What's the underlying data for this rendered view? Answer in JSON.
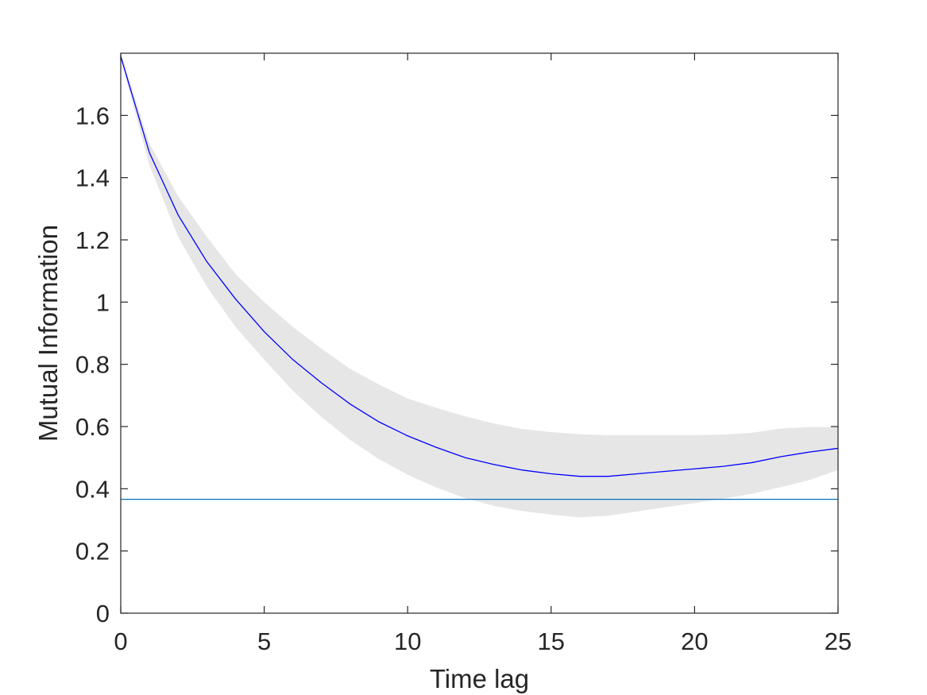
{
  "chart_data": {
    "type": "line",
    "title": "",
    "xlabel": "Time lag",
    "ylabel": "Mutual Information",
    "xlim": [
      0,
      25
    ],
    "ylim": [
      0,
      1.8
    ],
    "xticks": [
      0,
      5,
      10,
      15,
      20,
      25
    ],
    "xtick_labels": [
      "0",
      "5",
      "10",
      "15",
      "20",
      "25"
    ],
    "yticks": [
      0,
      0.2,
      0.4,
      0.6,
      0.8,
      1,
      1.2,
      1.4,
      1.6
    ],
    "ytick_labels": [
      "0",
      "0.2",
      "0.4",
      "0.6",
      "0.8",
      "1",
      "1.2",
      "1.4",
      "1.6"
    ],
    "grid": false,
    "box": true,
    "series": [
      {
        "kind": "line",
        "color": "#0000ff",
        "x": [
          0,
          1,
          2,
          3,
          4,
          5,
          6,
          7,
          8,
          9,
          10,
          11,
          12,
          13,
          14,
          15,
          16,
          17,
          18,
          19,
          20,
          21,
          22,
          23,
          24,
          25
        ],
        "y": [
          1.79,
          1.48,
          1.28,
          1.13,
          1.01,
          0.905,
          0.815,
          0.74,
          0.672,
          0.615,
          0.57,
          0.533,
          0.5,
          0.478,
          0.46,
          0.448,
          0.44,
          0.44,
          0.448,
          0.456,
          0.464,
          0.472,
          0.484,
          0.503,
          0.518,
          0.53
        ]
      },
      {
        "kind": "band",
        "color": "#e6e6e6",
        "x": [
          0,
          1,
          2,
          3,
          4,
          5,
          6,
          7,
          8,
          9,
          10,
          11,
          12,
          13,
          14,
          15,
          16,
          17,
          18,
          19,
          20,
          21,
          22,
          23,
          24,
          25
        ],
        "upper": [
          1.8,
          1.51,
          1.34,
          1.21,
          1.09,
          1.0,
          0.92,
          0.85,
          0.785,
          0.735,
          0.69,
          0.66,
          0.633,
          0.61,
          0.592,
          0.582,
          0.575,
          0.572,
          0.572,
          0.572,
          0.572,
          0.574,
          0.58,
          0.594,
          0.598,
          0.598
        ],
        "lower": [
          1.78,
          1.44,
          1.21,
          1.05,
          0.92,
          0.815,
          0.715,
          0.63,
          0.557,
          0.495,
          0.445,
          0.404,
          0.37,
          0.345,
          0.328,
          0.317,
          0.308,
          0.313,
          0.327,
          0.341,
          0.354,
          0.368,
          0.384,
          0.405,
          0.428,
          0.46
        ]
      },
      {
        "kind": "hline",
        "color": "#0072bd",
        "y": 0.366
      }
    ]
  }
}
